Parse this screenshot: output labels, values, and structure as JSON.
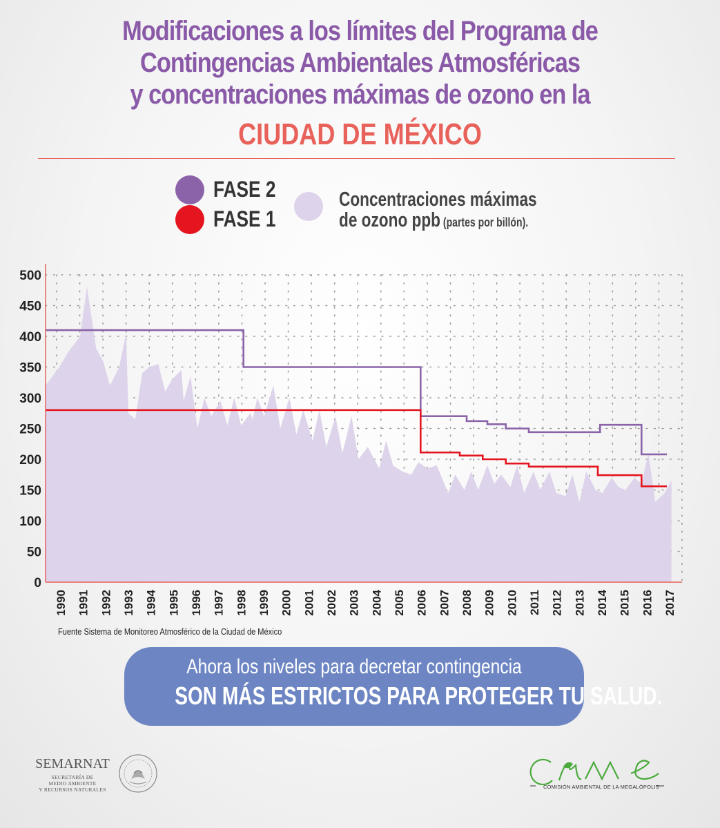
{
  "header": {
    "title_lines": [
      "Modificaciones a los límites del Programa de",
      "Contingencias Ambientales Atmosféricas",
      "y concentraciones máximas de ozono en la"
    ],
    "subtitle": "CIUDAD DE MÉXICO"
  },
  "legend": {
    "fase2": "FASE 2",
    "fase1": "FASE 1",
    "ozone_label_line1": "Concentraciones máximas",
    "ozone_label_line2": "de ozono ppb",
    "ozone_label_small": " (partes por billón)."
  },
  "colors": {
    "fase2": "#8a63a8",
    "fase1": "#e4151f",
    "ozone_fill": "#ddd3ea",
    "axis": "#e8615a",
    "title": "#8a5aa8",
    "subtitle": "#e8615a",
    "banner": "#6d86c3"
  },
  "chart_data": {
    "type": "area",
    "ylim": [
      0,
      500
    ],
    "y_ticks": [
      "0",
      "50",
      "100",
      "150",
      "200",
      "250",
      "300",
      "350",
      "400",
      "450",
      "500"
    ],
    "x_ticks": [
      "1990",
      "1991",
      "1992",
      "1993",
      "1994",
      "1995",
      "1996",
      "1997",
      "1998",
      "1999",
      "2000",
      "2001",
      "2002",
      "2003",
      "2004",
      "2005",
      "2006",
      "2007",
      "2008",
      "2009",
      "2010",
      "2011",
      "2012",
      "2013",
      "2014",
      "2015",
      "2016",
      "2017"
    ],
    "grid": true,
    "ozone_max_ppb": [
      [
        1990.0,
        320
      ],
      [
        1990.6,
        350
      ],
      [
        1991.0,
        375
      ],
      [
        1991.5,
        400
      ],
      [
        1991.8,
        480
      ],
      [
        1992.2,
        380
      ],
      [
        1992.5,
        360
      ],
      [
        1992.8,
        320
      ],
      [
        1993.2,
        350
      ],
      [
        1993.5,
        405
      ],
      [
        1993.6,
        275
      ],
      [
        1993.9,
        265
      ],
      [
        1994.2,
        340
      ],
      [
        1994.5,
        350
      ],
      [
        1994.9,
        355
      ],
      [
        1995.2,
        310
      ],
      [
        1995.5,
        330
      ],
      [
        1995.9,
        345
      ],
      [
        1996.0,
        295
      ],
      [
        1996.3,
        335
      ],
      [
        1996.6,
        250
      ],
      [
        1996.9,
        300
      ],
      [
        1997.2,
        270
      ],
      [
        1997.6,
        295
      ],
      [
        1997.9,
        255
      ],
      [
        1998.2,
        300
      ],
      [
        1998.5,
        255
      ],
      [
        1998.9,
        275
      ],
      [
        1999.0,
        265
      ],
      [
        1999.2,
        300
      ],
      [
        1999.5,
        270
      ],
      [
        1999.9,
        320
      ],
      [
        2000.2,
        250
      ],
      [
        2000.6,
        300
      ],
      [
        2000.9,
        240
      ],
      [
        2001.2,
        280
      ],
      [
        2001.6,
        230
      ],
      [
        2001.9,
        280
      ],
      [
        2002.2,
        220
      ],
      [
        2002.6,
        270
      ],
      [
        2002.9,
        210
      ],
      [
        2003.3,
        270
      ],
      [
        2003.6,
        200
      ],
      [
        2004.0,
        220
      ],
      [
        2004.5,
        185
      ],
      [
        2004.8,
        230
      ],
      [
        2005.1,
        190
      ],
      [
        2005.5,
        180
      ],
      [
        2005.9,
        175
      ],
      [
        2006.2,
        195
      ],
      [
        2006.6,
        185
      ],
      [
        2007.0,
        190
      ],
      [
        2007.5,
        145
      ],
      [
        2007.8,
        175
      ],
      [
        2008.2,
        150
      ],
      [
        2008.5,
        180
      ],
      [
        2008.8,
        150
      ],
      [
        2009.2,
        190
      ],
      [
        2009.5,
        160
      ],
      [
        2009.8,
        175
      ],
      [
        2010.2,
        155
      ],
      [
        2010.5,
        190
      ],
      [
        2010.8,
        145
      ],
      [
        2011.2,
        180
      ],
      [
        2011.5,
        150
      ],
      [
        2011.9,
        180
      ],
      [
        2012.2,
        145
      ],
      [
        2012.6,
        140
      ],
      [
        2012.9,
        175
      ],
      [
        2013.2,
        130
      ],
      [
        2013.5,
        180
      ],
      [
        2013.9,
        150
      ],
      [
        2014.2,
        145
      ],
      [
        2014.6,
        170
      ],
      [
        2014.9,
        155
      ],
      [
        2015.2,
        150
      ],
      [
        2015.6,
        170
      ],
      [
        2015.9,
        160
      ],
      [
        2016.2,
        210
      ],
      [
        2016.5,
        130
      ],
      [
        2016.9,
        145
      ],
      [
        2017.2,
        165
      ]
    ],
    "fase2_steps": [
      [
        1990.0,
        410
      ],
      [
        1998.6,
        410
      ],
      [
        1998.6,
        350
      ],
      [
        2006.3,
        350
      ],
      [
        2006.3,
        270
      ],
      [
        2008.3,
        270
      ],
      [
        2008.3,
        262
      ],
      [
        2009.2,
        262
      ],
      [
        2009.2,
        257
      ],
      [
        2010.0,
        257
      ],
      [
        2010.0,
        250
      ],
      [
        2011.0,
        250
      ],
      [
        2011.0,
        244
      ],
      [
        2014.1,
        244
      ],
      [
        2014.1,
        256
      ],
      [
        2015.9,
        256
      ],
      [
        2015.9,
        208
      ],
      [
        2017.0,
        208
      ]
    ],
    "fase1_steps": [
      [
        1990.0,
        280
      ],
      [
        2006.3,
        280
      ],
      [
        2006.3,
        211
      ],
      [
        2008.0,
        211
      ],
      [
        2008.0,
        206
      ],
      [
        2009.0,
        206
      ],
      [
        2009.0,
        200
      ],
      [
        2010.0,
        200
      ],
      [
        2010.0,
        193
      ],
      [
        2011.0,
        193
      ],
      [
        2011.0,
        188
      ],
      [
        2014.0,
        188
      ],
      [
        2014.0,
        174
      ],
      [
        2015.9,
        174
      ],
      [
        2015.9,
        156
      ],
      [
        2017.0,
        156
      ]
    ]
  },
  "footer": {
    "source": "Fuente Sistema de Monitoreo Atmosférico de la Ciudad de México",
    "banner_line1": "Ahora los niveles para decretar contingencia",
    "banner_line2": "SON MÁS ESTRICTOS PARA PROTEGER TU SALUD.",
    "semarnat": "SEMARNAT",
    "semarnat_sub1": "SECRETARÍA DE",
    "semarnat_sub2": "MEDIO AMBIENTE",
    "semarnat_sub3": "Y RECURSOS NATURALES",
    "came_sub": "COMISIÓN AMBIENTAL DE LA MEGALÓPOLIS"
  }
}
